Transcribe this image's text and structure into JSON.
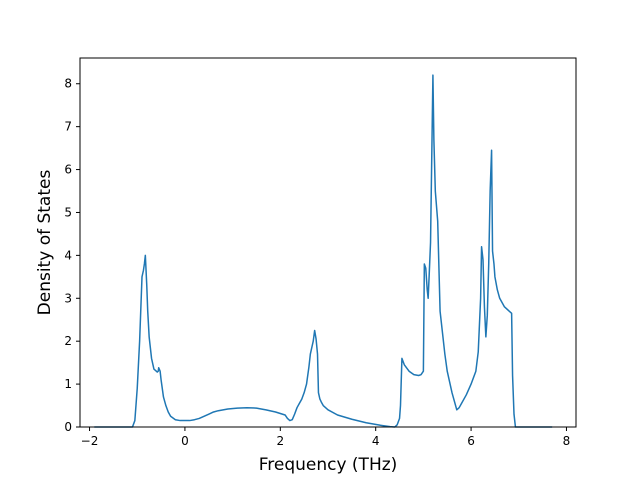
{
  "chart_data": {
    "type": "line",
    "title": "",
    "xlabel": "Frequency (THz)",
    "ylabel": "Density of States",
    "xlim": [
      -2.2,
      8.2
    ],
    "ylim": [
      0,
      8.6
    ],
    "xticks": [
      -2,
      0,
      2,
      4,
      6,
      8
    ],
    "yticks": [
      0,
      1,
      2,
      3,
      4,
      5,
      6,
      7,
      8
    ],
    "grid": false,
    "legend": "none",
    "line_color": "#1f77b4",
    "series": [
      {
        "x": [
          -1.9,
          -1.7,
          -1.4,
          -1.1,
          -1.05,
          -1.0,
          -0.95,
          -0.9,
          -0.87,
          -0.85,
          -0.83,
          -0.8,
          -0.78,
          -0.75,
          -0.7,
          -0.65,
          -0.6,
          -0.58,
          -0.56,
          -0.55,
          -0.52,
          -0.5,
          -0.45,
          -0.4,
          -0.35,
          -0.3,
          -0.2,
          -0.1,
          0.0,
          0.1,
          0.2,
          0.3,
          0.4,
          0.5,
          0.6,
          0.7,
          0.9,
          1.1,
          1.3,
          1.5,
          1.7,
          1.9,
          2.1,
          2.15,
          2.2,
          2.25,
          2.3,
          2.35,
          2.4,
          2.45,
          2.5,
          2.55,
          2.6,
          2.63,
          2.66,
          2.69,
          2.72,
          2.75,
          2.78,
          2.8,
          2.83,
          2.86,
          2.9,
          3.0,
          3.2,
          3.5,
          3.8,
          4.1,
          4.3,
          4.4,
          4.45,
          4.5,
          4.52,
          4.55,
          4.6,
          4.7,
          4.8,
          4.9,
          4.95,
          5.0,
          5.02,
          5.05,
          5.08,
          5.1,
          5.12,
          5.15,
          5.2,
          5.22,
          5.25,
          5.3,
          5.35,
          5.4,
          5.45,
          5.5,
          5.6,
          5.7,
          5.75,
          5.8,
          5.9,
          6.0,
          6.1,
          6.15,
          6.2,
          6.22,
          6.25,
          6.28,
          6.31,
          6.34,
          6.37,
          6.4,
          6.43,
          6.45,
          6.48,
          6.5,
          6.55,
          6.6,
          6.7,
          6.8,
          6.85,
          6.87,
          6.9,
          6.93,
          6.97,
          7.1,
          7.3,
          7.5,
          7.7
        ],
        "values": [
          0,
          0,
          0,
          0,
          0.15,
          0.9,
          2.0,
          3.5,
          3.65,
          3.8,
          4.0,
          3.3,
          2.7,
          2.1,
          1.6,
          1.35,
          1.3,
          1.28,
          1.3,
          1.38,
          1.3,
          1.1,
          0.7,
          0.5,
          0.35,
          0.25,
          0.17,
          0.15,
          0.15,
          0.15,
          0.17,
          0.2,
          0.25,
          0.3,
          0.35,
          0.38,
          0.42,
          0.44,
          0.45,
          0.44,
          0.4,
          0.35,
          0.28,
          0.2,
          0.15,
          0.17,
          0.3,
          0.45,
          0.55,
          0.65,
          0.8,
          1.0,
          1.4,
          1.7,
          1.85,
          2.0,
          2.25,
          2.05,
          1.7,
          0.8,
          0.65,
          0.58,
          0.5,
          0.4,
          0.28,
          0.18,
          0.1,
          0.04,
          0.01,
          0.0,
          0.05,
          0.2,
          0.5,
          1.6,
          1.45,
          1.3,
          1.22,
          1.2,
          1.22,
          1.3,
          3.8,
          3.7,
          3.2,
          3.0,
          3.5,
          4.3,
          8.2,
          6.7,
          5.5,
          4.8,
          2.7,
          2.2,
          1.7,
          1.3,
          0.8,
          0.4,
          0.45,
          0.55,
          0.75,
          1.0,
          1.3,
          1.75,
          3.0,
          4.2,
          3.9,
          2.8,
          2.1,
          2.6,
          3.8,
          5.5,
          6.45,
          4.1,
          3.8,
          3.5,
          3.2,
          3.0,
          2.8,
          2.7,
          2.65,
          1.2,
          0.3,
          0.0,
          0,
          0,
          0,
          0,
          0
        ]
      }
    ]
  }
}
